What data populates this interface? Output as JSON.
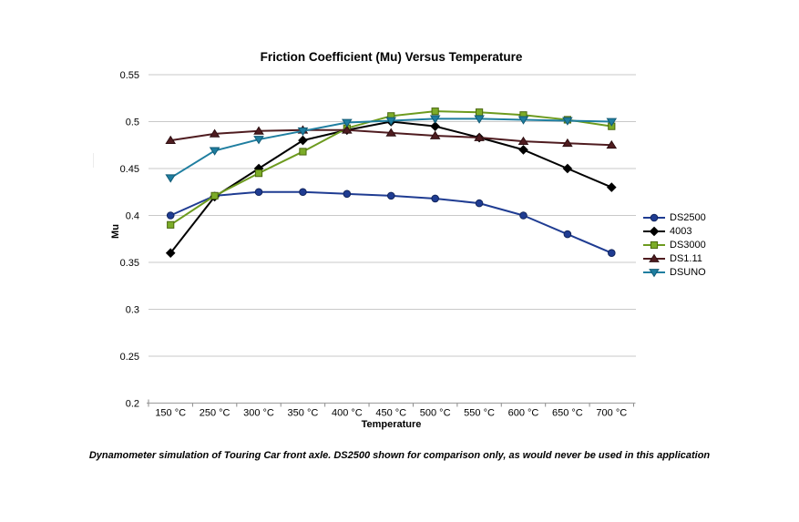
{
  "caption": "Dynamometer simulation of Touring Car front axle. DS2500 shown for comparison only, as would never be used in this application",
  "colors": {
    "background": "#FFFFFF",
    "gridline": "#C9C9C9",
    "axis_line": "#A6A6A6",
    "tick_mark": "#8C8C8C",
    "text": "#000000"
  },
  "chart_data": {
    "type": "line",
    "title": "Friction Coefficient (Mu) Versus Temperature",
    "xlabel": "Temperature",
    "ylabel": "Mu",
    "ylim": [
      0.2,
      0.55
    ],
    "grid": true,
    "legend_position": "right",
    "yticks": [
      {
        "value": 0.55,
        "label": "0.55"
      },
      {
        "value": 0.5,
        "label": "0.5"
      },
      {
        "value": 0.45,
        "label": "0.45"
      },
      {
        "value": 0.4,
        "label": "0.4"
      },
      {
        "value": 0.35,
        "label": "0.35"
      },
      {
        "value": 0.3,
        "label": "0.3"
      },
      {
        "value": 0.25,
        "label": "0.25"
      },
      {
        "value": 0.2,
        "label": "0.2"
      }
    ],
    "categories": [
      "150 °C",
      "250 °C",
      "300 °C",
      "350 °C",
      "400 °C",
      "450 °C",
      "500 °C",
      "550 °C",
      "600 °C",
      "650 °C",
      "700 °C"
    ],
    "series": [
      {
        "name": "DS2500",
        "marker": "circle",
        "color": "#1F3C92",
        "marker_fill": "#1F3C92",
        "marker_stroke": "#12255C",
        "values": [
          0.4,
          0.421,
          0.425,
          0.425,
          0.423,
          0.421,
          0.418,
          0.413,
          0.4,
          0.38,
          0.36
        ]
      },
      {
        "name": "4003",
        "marker": "diamond",
        "color": "#000000",
        "marker_fill": "#000000",
        "marker_stroke": "#000000",
        "values": [
          0.36,
          0.42,
          0.45,
          0.48,
          0.491,
          0.5,
          0.495,
          0.483,
          0.47,
          0.45,
          0.43
        ]
      },
      {
        "name": "DS3000",
        "marker": "square",
        "color": "#6D9B1F",
        "marker_fill": "#7CAC28",
        "marker_stroke": "#4A670F",
        "values": [
          0.39,
          0.421,
          0.445,
          0.468,
          0.493,
          0.506,
          0.511,
          0.51,
          0.507,
          0.502,
          0.495
        ]
      },
      {
        "name": "DS1.11",
        "marker": "triangle-up",
        "color": "#4F1C20",
        "marker_fill": "#4F1C20",
        "marker_stroke": "#2E0F12",
        "values": [
          0.48,
          0.487,
          0.49,
          0.491,
          0.491,
          0.488,
          0.485,
          0.483,
          0.479,
          0.477,
          0.475
        ]
      },
      {
        "name": "DSUNO",
        "marker": "triangle-down",
        "color": "#1F7EA0",
        "marker_fill": "#1F7EA0",
        "marker_stroke": "#125B76",
        "values": [
          0.44,
          0.469,
          0.481,
          0.49,
          0.499,
          0.501,
          0.503,
          0.503,
          0.502,
          0.501,
          0.5
        ]
      }
    ]
  }
}
